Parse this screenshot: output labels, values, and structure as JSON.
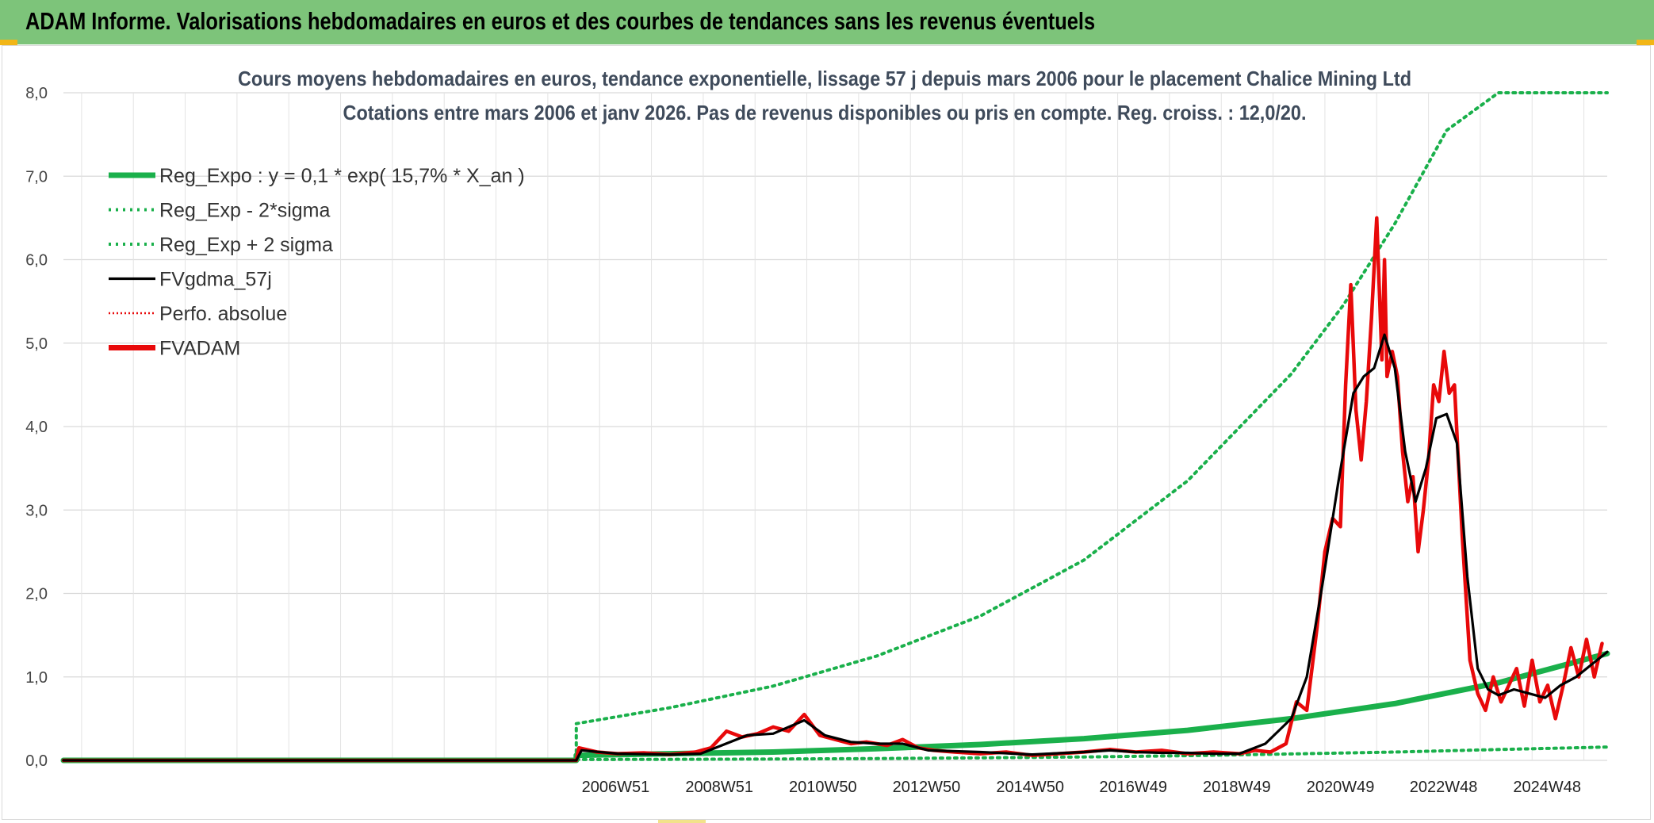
{
  "header": {
    "title": "ADAM Informe. Valorisations hebdomadaires en euros et des courbes de tendances sans les revenus éventuels"
  },
  "chart_data": {
    "type": "line",
    "title": "Cours moyens hebdomadaires en euros, tendance exponentielle, lissage 57 j depuis mars 2006 pour le placement Chalice Mining Ltd",
    "subtitle": "Cotations entre mars 2006 et janv 2026. Pas de revenus disponibles ou pris en compte. Reg. croiss. : 12,0/20.",
    "xlabel": "",
    "ylabel": "",
    "ylim": [
      0,
      8
    ],
    "y_ticks": [
      "0,0",
      "1,0",
      "2,0",
      "3,0",
      "4,0",
      "5,0",
      "6,0",
      "7,0",
      "8,0"
    ],
    "x_ticks": [
      "2006W51",
      "2008W51",
      "2010W50",
      "2012W50",
      "2014W50",
      "2016W49",
      "2018W49",
      "2020W49",
      "2022W48",
      "2024W48"
    ],
    "x_tick_years": [
      2006.96,
      2008.96,
      2010.96,
      2012.96,
      2014.96,
      2016.95,
      2018.95,
      2020.95,
      2022.94,
      2024.94
    ],
    "xlim": [
      1996.3,
      2026.1
    ],
    "grid": true,
    "legend_position": "top-left",
    "colors": {
      "green": "#1ab04b",
      "black": "#000000",
      "red": "#e8090a"
    },
    "legend": [
      {
        "label": "Reg_Expo : y = 0,1 * exp( 15,7% *  X_an )",
        "style": "solid-thick",
        "color": "#1ab04b"
      },
      {
        "label": "Reg_Exp - 2*sigma",
        "style": "dotted",
        "color": "#1ab04b"
      },
      {
        "label": "Reg_Exp + 2 sigma",
        "style": "dotted",
        "color": "#1ab04b"
      },
      {
        "label": "FVgdma_57j",
        "style": "solid",
        "color": "#000000"
      },
      {
        "label": "Perfo. absolue",
        "style": "dotted",
        "color": "#e8090a"
      },
      {
        "label": "FVADAM",
        "style": "solid-thick",
        "color": "#e8090a"
      }
    ],
    "series": [
      {
        "name": "Reg_Expo : y = 0,1 * exp( 15,7% *  X_an )",
        "x": [
          1996.3,
          2006.2,
          2006.2,
          2008,
          2010,
          2012,
          2014,
          2016,
          2018,
          2020,
          2022,
          2024,
          2026.1
        ],
        "values": [
          0,
          0,
          0.06,
          0.08,
          0.1,
          0.14,
          0.19,
          0.26,
          0.36,
          0.5,
          0.68,
          0.93,
          1.28
        ]
      },
      {
        "name": "Reg_Exp - 2*sigma",
        "x": [
          1996.3,
          2006.2,
          2006.2,
          2008,
          2010,
          2012,
          2014,
          2016,
          2018,
          2020,
          2022,
          2024,
          2026.1
        ],
        "values": [
          0,
          0,
          0.01,
          0.012,
          0.016,
          0.022,
          0.03,
          0.041,
          0.056,
          0.077,
          0.1,
          0.13,
          0.16
        ]
      },
      {
        "name": "Reg_Exp + 2 sigma",
        "x": [
          1996.3,
          2006.2,
          2006.2,
          2008,
          2010,
          2012,
          2014,
          2016,
          2018,
          2020,
          2021,
          2022,
          2023,
          2024,
          2025,
          2026.1
        ],
        "values": [
          0,
          0,
          0.44,
          0.63,
          0.89,
          1.25,
          1.73,
          2.4,
          3.35,
          4.63,
          5.45,
          6.43,
          7.55,
          8.0,
          8.0,
          8.0
        ]
      },
      {
        "name": "FVgdma_57j",
        "x": [
          1996.3,
          2006.2,
          2006.3,
          2007,
          2008,
          2008.6,
          2009.5,
          2010,
          2010.6,
          2011,
          2011.5,
          2012,
          2012.5,
          2013,
          2014,
          2015,
          2016,
          2016.5,
          2017,
          2017.5,
          2018,
          2018.5,
          2019,
          2019.5,
          2020,
          2020.3,
          2020.6,
          2020.9,
          2021.2,
          2021.4,
          2021.6,
          2021.8,
          2022,
          2022.2,
          2022.4,
          2022.6,
          2022.8,
          2023,
          2023.2,
          2023.4,
          2023.6,
          2023.8,
          2024,
          2024.3,
          2024.6,
          2024.9,
          2025.2,
          2025.5,
          2025.8,
          2026.1
        ],
        "values": [
          0,
          0,
          0.12,
          0.08,
          0.07,
          0.08,
          0.3,
          0.32,
          0.48,
          0.3,
          0.22,
          0.2,
          0.2,
          0.12,
          0.1,
          0.07,
          0.1,
          0.12,
          0.1,
          0.09,
          0.09,
          0.08,
          0.08,
          0.2,
          0.5,
          1.0,
          2.1,
          3.3,
          4.4,
          4.6,
          4.7,
          5.1,
          4.7,
          3.7,
          3.1,
          3.5,
          4.1,
          4.15,
          3.8,
          2.2,
          1.1,
          0.85,
          0.78,
          0.85,
          0.8,
          0.75,
          0.9,
          1.0,
          1.15,
          1.3
        ]
      },
      {
        "name": "Perfo. absolue",
        "x": [],
        "values": []
      },
      {
        "name": "FVADAM",
        "x": [
          1996.3,
          2006.2,
          2006.25,
          2006.6,
          2007,
          2007.5,
          2008,
          2008.5,
          2008.8,
          2009.1,
          2009.4,
          2009.7,
          2010,
          2010.3,
          2010.6,
          2010.9,
          2011.2,
          2011.5,
          2011.8,
          2012.2,
          2012.5,
          2012.8,
          2013.1,
          2013.5,
          2014,
          2014.5,
          2015,
          2015.5,
          2016,
          2016.5,
          2017,
          2017.5,
          2018,
          2018.5,
          2019,
          2019.3,
          2019.6,
          2019.9,
          2020.1,
          2020.3,
          2020.5,
          2020.65,
          2020.8,
          2020.95,
          2021.05,
          2021.15,
          2021.25,
          2021.35,
          2021.45,
          2021.55,
          2021.65,
          2021.75,
          2021.8,
          2021.85,
          2021.95,
          2022.05,
          2022.15,
          2022.25,
          2022.35,
          2022.45,
          2022.55,
          2022.65,
          2022.75,
          2022.85,
          2022.95,
          2023.05,
          2023.15,
          2023.3,
          2023.45,
          2023.6,
          2023.75,
          2023.9,
          2024.05,
          2024.2,
          2024.35,
          2024.5,
          2024.65,
          2024.8,
          2024.95,
          2025.1,
          2025.25,
          2025.4,
          2025.55,
          2025.7,
          2025.85,
          2026.0
        ],
        "values": [
          0,
          0,
          0.15,
          0.1,
          0.08,
          0.09,
          0.07,
          0.1,
          0.15,
          0.35,
          0.28,
          0.32,
          0.4,
          0.35,
          0.55,
          0.3,
          0.25,
          0.2,
          0.22,
          0.18,
          0.25,
          0.15,
          0.12,
          0.1,
          0.08,
          0.1,
          0.06,
          0.08,
          0.1,
          0.13,
          0.1,
          0.12,
          0.08,
          0.1,
          0.08,
          0.12,
          0.1,
          0.2,
          0.7,
          0.6,
          1.6,
          2.5,
          2.9,
          2.8,
          4.5,
          5.7,
          4.2,
          3.6,
          4.3,
          5.3,
          6.5,
          4.8,
          6.0,
          4.6,
          4.9,
          4.6,
          3.7,
          3.1,
          3.4,
          2.5,
          3.0,
          3.6,
          4.5,
          4.3,
          4.9,
          4.4,
          4.5,
          2.7,
          1.2,
          0.8,
          0.6,
          1.0,
          0.7,
          0.9,
          1.1,
          0.65,
          1.2,
          0.7,
          0.9,
          0.5,
          0.9,
          1.35,
          1.0,
          1.45,
          1.0,
          1.4
        ]
      }
    ]
  }
}
